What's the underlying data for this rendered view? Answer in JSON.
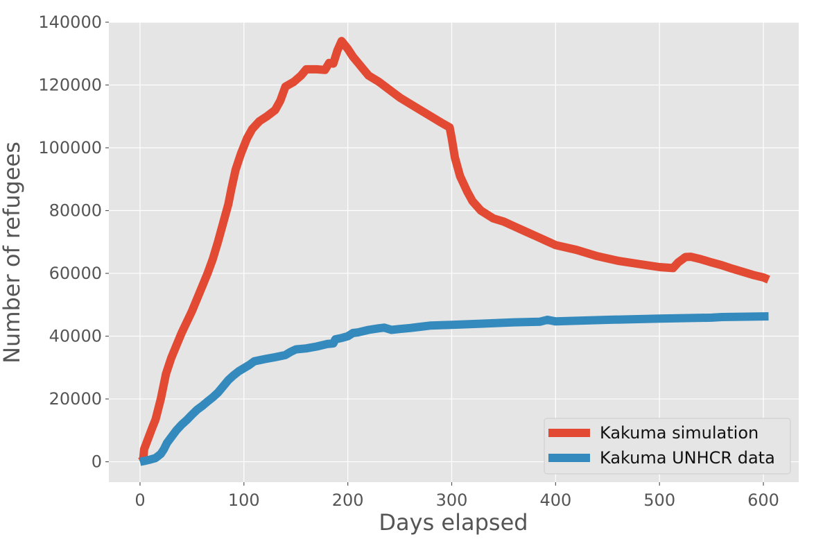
{
  "chart_data": {
    "type": "line",
    "title": "",
    "xlabel": "Days elapsed",
    "ylabel": "Number of refugees",
    "xlim": [
      -30,
      634
    ],
    "ylim": [
      -6500,
      140000
    ],
    "xticks": [
      0,
      100,
      200,
      300,
      400,
      500,
      600
    ],
    "yticks": [
      0,
      20000,
      40000,
      60000,
      80000,
      100000,
      120000,
      140000
    ],
    "grid": true,
    "legend_position": "lower right",
    "series": [
      {
        "name": "Kakuma simulation",
        "color": "#E24A33",
        "points": [
          [
            0,
            0
          ],
          [
            3,
            500
          ],
          [
            4,
            4000
          ],
          [
            8,
            7500
          ],
          [
            12,
            11000
          ],
          [
            15,
            13500
          ],
          [
            20,
            20000
          ],
          [
            25,
            28000
          ],
          [
            30,
            33000
          ],
          [
            35,
            37000
          ],
          [
            40,
            41000
          ],
          [
            45,
            44500
          ],
          [
            50,
            48000
          ],
          [
            55,
            52000
          ],
          [
            60,
            56000
          ],
          [
            65,
            60000
          ],
          [
            70,
            64500
          ],
          [
            75,
            70000
          ],
          [
            80,
            76000
          ],
          [
            85,
            82000
          ],
          [
            88,
            87000
          ],
          [
            92,
            93000
          ],
          [
            97,
            98000
          ],
          [
            103,
            103000
          ],
          [
            108,
            106000
          ],
          [
            115,
            108500
          ],
          [
            122,
            110000
          ],
          [
            130,
            112000
          ],
          [
            135,
            115000
          ],
          [
            140,
            119500
          ],
          [
            148,
            121000
          ],
          [
            155,
            123000
          ],
          [
            160,
            125000
          ],
          [
            170,
            125000
          ],
          [
            178,
            124800
          ],
          [
            182,
            127000
          ],
          [
            186,
            126800
          ],
          [
            190,
            131000
          ],
          [
            194,
            134000
          ],
          [
            200,
            131500
          ],
          [
            205,
            129000
          ],
          [
            210,
            127000
          ],
          [
            215,
            125000
          ],
          [
            220,
            123000
          ],
          [
            230,
            121000
          ],
          [
            240,
            118500
          ],
          [
            250,
            116000
          ],
          [
            260,
            114000
          ],
          [
            270,
            112000
          ],
          [
            280,
            110000
          ],
          [
            290,
            108000
          ],
          [
            298,
            106500
          ],
          [
            300,
            103000
          ],
          [
            303,
            97000
          ],
          [
            308,
            91000
          ],
          [
            315,
            86000
          ],
          [
            320,
            83000
          ],
          [
            328,
            80000
          ],
          [
            340,
            77500
          ],
          [
            350,
            76500
          ],
          [
            360,
            75000
          ],
          [
            370,
            73500
          ],
          [
            380,
            72000
          ],
          [
            390,
            70500
          ],
          [
            400,
            69000
          ],
          [
            420,
            67500
          ],
          [
            440,
            65500
          ],
          [
            460,
            64000
          ],
          [
            480,
            63000
          ],
          [
            500,
            62000
          ],
          [
            513,
            61700
          ],
          [
            518,
            63500
          ],
          [
            525,
            65200
          ],
          [
            530,
            65300
          ],
          [
            540,
            64500
          ],
          [
            550,
            63500
          ],
          [
            560,
            62600
          ],
          [
            570,
            61500
          ],
          [
            580,
            60500
          ],
          [
            590,
            59500
          ],
          [
            600,
            58700
          ],
          [
            605,
            58000
          ]
        ]
      },
      {
        "name": "Kakuma UNHCR data",
        "color": "#348ABD",
        "points": [
          [
            0,
            0
          ],
          [
            5,
            300
          ],
          [
            10,
            700
          ],
          [
            15,
            1200
          ],
          [
            20,
            2500
          ],
          [
            23,
            4000
          ],
          [
            26,
            6000
          ],
          [
            30,
            7800
          ],
          [
            35,
            10000
          ],
          [
            40,
            11800
          ],
          [
            45,
            13300
          ],
          [
            50,
            15000
          ],
          [
            55,
            16600
          ],
          [
            60,
            17800
          ],
          [
            65,
            19200
          ],
          [
            70,
            20500
          ],
          [
            75,
            22000
          ],
          [
            80,
            24000
          ],
          [
            85,
            26000
          ],
          [
            90,
            27500
          ],
          [
            95,
            28800
          ],
          [
            100,
            29800
          ],
          [
            105,
            30800
          ],
          [
            110,
            32000
          ],
          [
            120,
            32700
          ],
          [
            130,
            33300
          ],
          [
            140,
            34000
          ],
          [
            145,
            35000
          ],
          [
            150,
            35800
          ],
          [
            160,
            36100
          ],
          [
            170,
            36700
          ],
          [
            180,
            37500
          ],
          [
            186,
            37700
          ],
          [
            188,
            39000
          ],
          [
            195,
            39500
          ],
          [
            200,
            40000
          ],
          [
            205,
            41000
          ],
          [
            210,
            41200
          ],
          [
            220,
            42000
          ],
          [
            230,
            42500
          ],
          [
            235,
            42700
          ],
          [
            242,
            42000
          ],
          [
            250,
            42300
          ],
          [
            260,
            42600
          ],
          [
            270,
            43000
          ],
          [
            280,
            43400
          ],
          [
            300,
            43600
          ],
          [
            330,
            44000
          ],
          [
            360,
            44400
          ],
          [
            385,
            44600
          ],
          [
            392,
            45200
          ],
          [
            400,
            44700
          ],
          [
            450,
            45200
          ],
          [
            500,
            45600
          ],
          [
            550,
            45900
          ],
          [
            560,
            46100
          ],
          [
            605,
            46300
          ]
        ]
      }
    ]
  }
}
